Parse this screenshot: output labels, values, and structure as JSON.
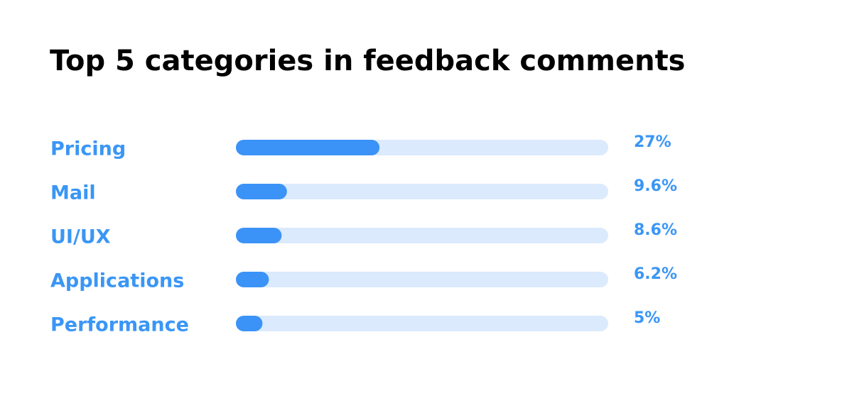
{
  "chart_data": {
    "type": "bar",
    "orientation": "horizontal",
    "title": "Top 5 categories in feedback comments",
    "categories": [
      "Pricing",
      "Mail",
      "UI/UX",
      "Applications",
      "Performance"
    ],
    "values": [
      27,
      9.6,
      8.6,
      6.2,
      5
    ],
    "value_labels": [
      "27%",
      "9.6%",
      "8.6%",
      "6.2%",
      "5%"
    ],
    "color": "#3b93f7",
    "track_color": "#dbeafc",
    "label_color": "#3a96f5",
    "xlim": [
      0,
      70
    ]
  }
}
